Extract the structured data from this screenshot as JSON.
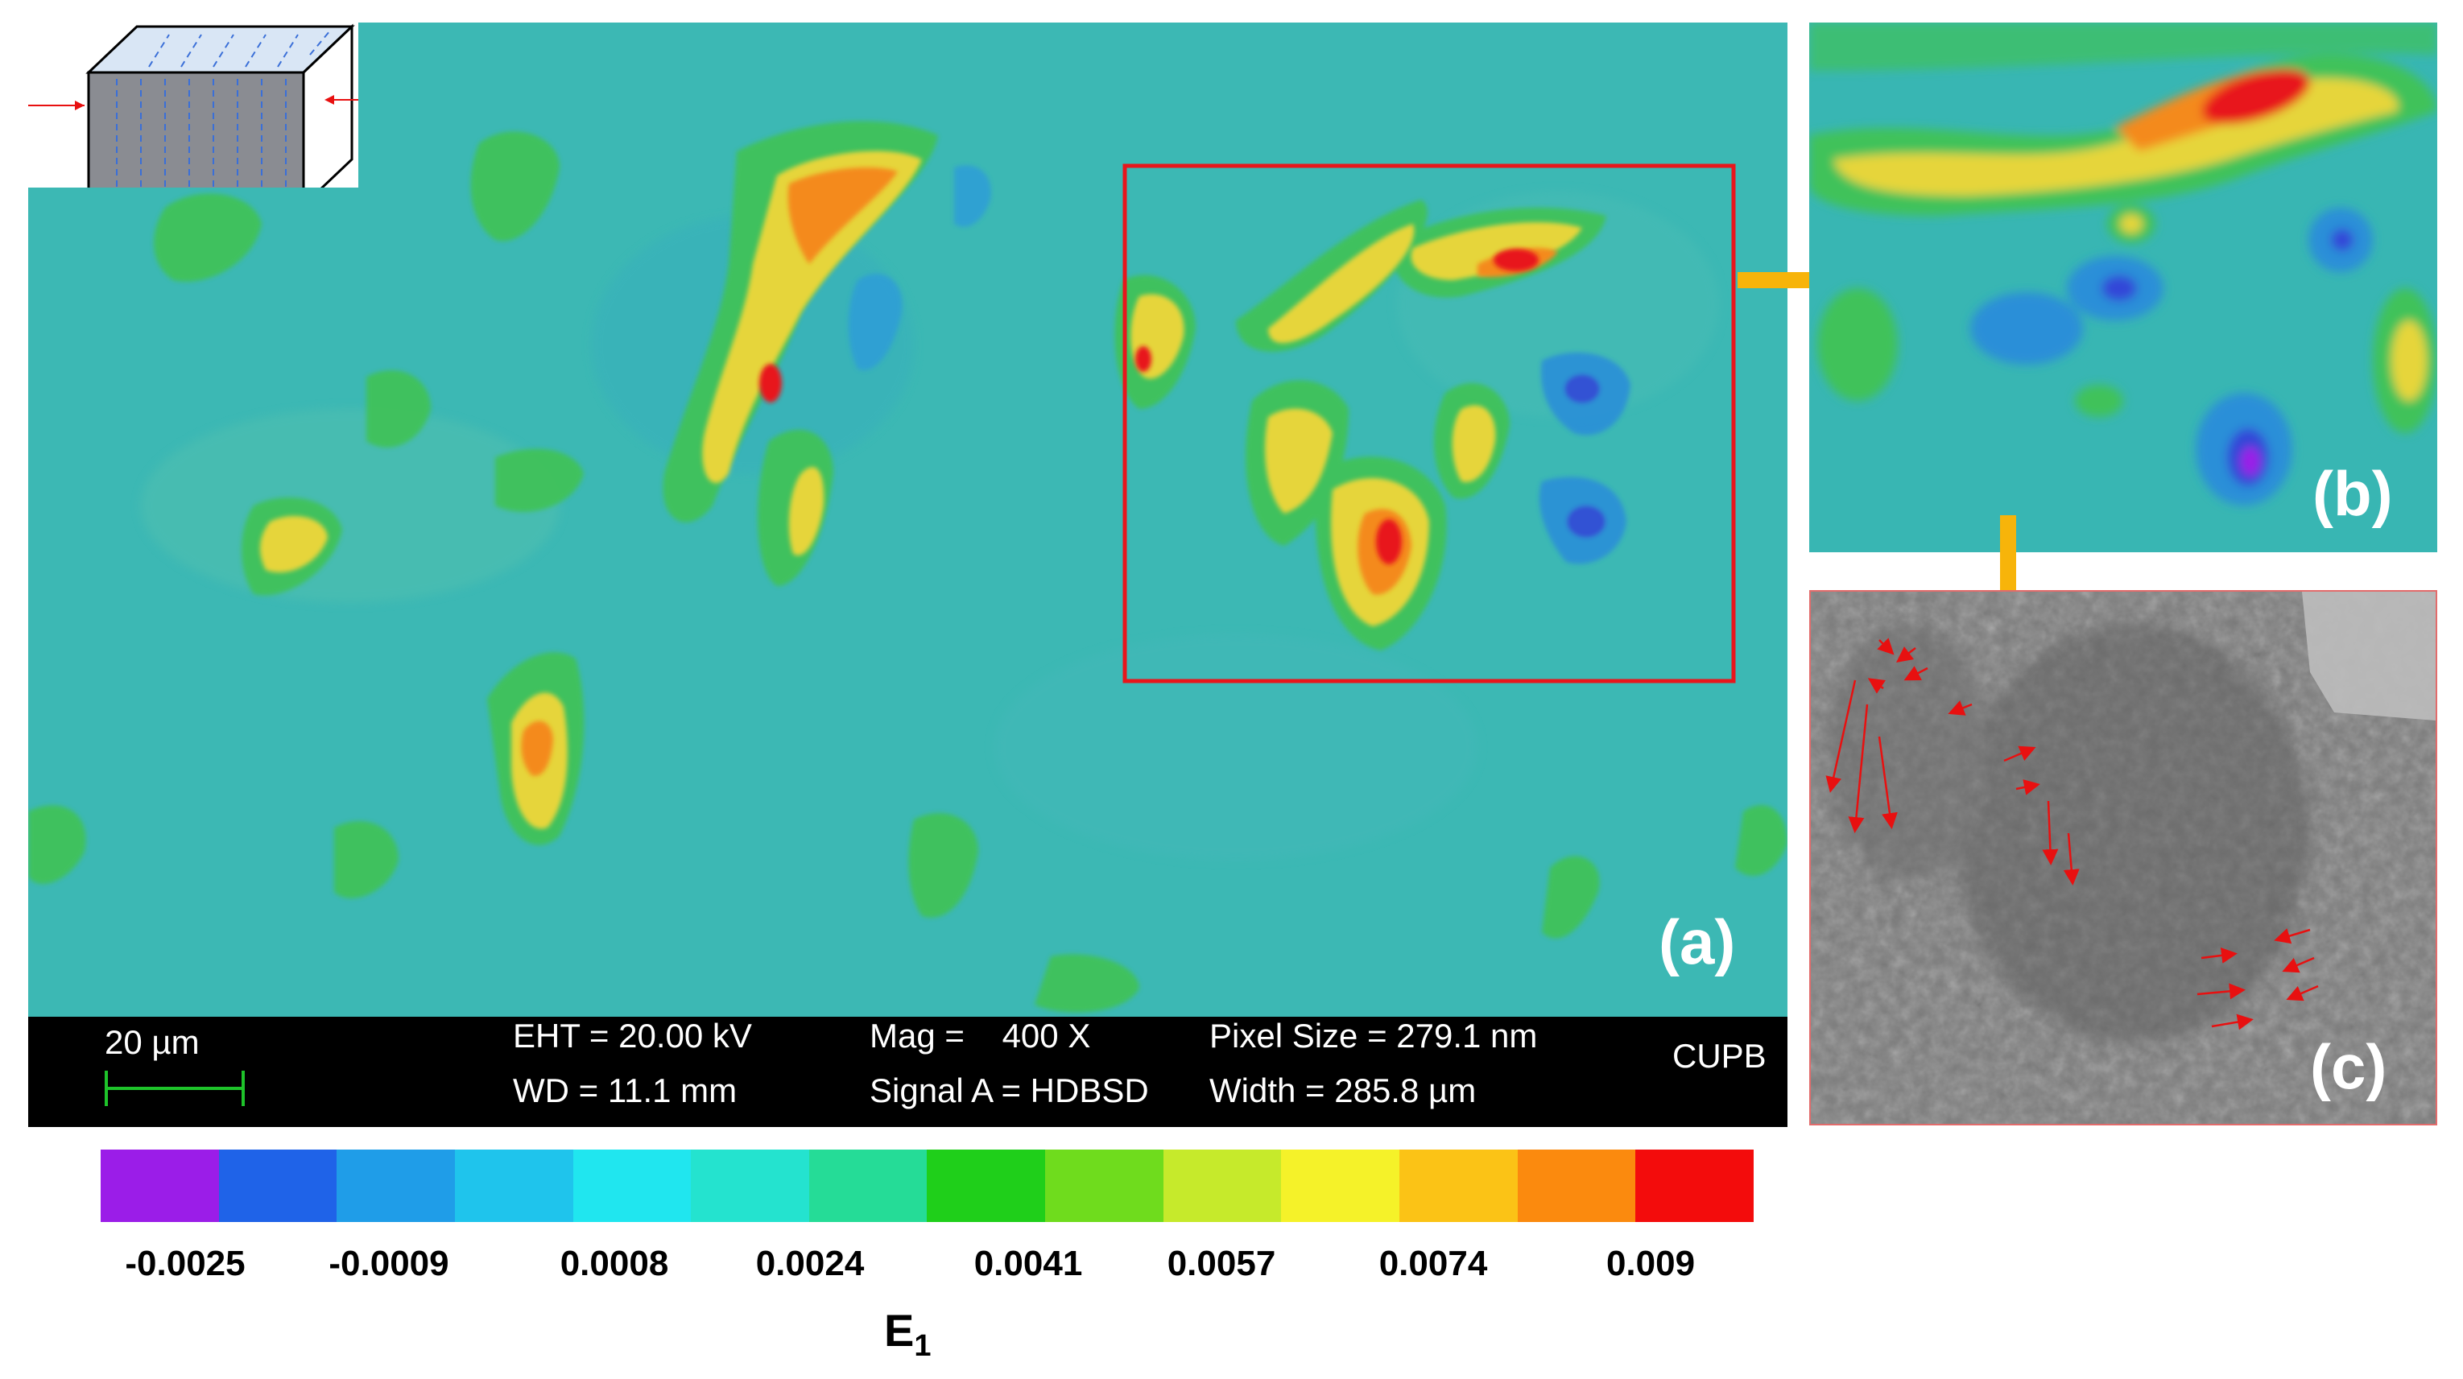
{
  "panel_labels": {
    "a": "(a)",
    "b": "(b)",
    "c": "(c)"
  },
  "sem_info": {
    "scale_bar": "20 µm",
    "eht": "EHT = 20.00 kV",
    "wd": "WD = 11.1 mm",
    "mag": "Mag =    400 X",
    "signal": "Signal A = HDBSD",
    "pixel_size": "Pixel Size = 279.1 nm",
    "width": "Width = 285.8 µm",
    "lab": "CUPB"
  },
  "colorbar": {
    "title_main": "E",
    "title_sub": "1",
    "ticks": [
      "-0.0025",
      "-0.0009",
      "0.0008",
      "0.0024",
      "0.0041",
      "0.0057",
      "0.0074",
      "0.009"
    ],
    "colors": [
      "#9b1de8",
      "#1f63e8",
      "#1f9de8",
      "#1fc4ec",
      "#20e6ef",
      "#24e3cf",
      "#25dc97",
      "#1fcf1a",
      "#6fdc1d",
      "#c6ea2b",
      "#f5f229",
      "#fbc316",
      "#fb8a0e",
      "#f30c0c"
    ]
  },
  "colors": {
    "highlight_box": "#e8161c",
    "arrow": "#f7b40a",
    "crack_arrow": "#e81010"
  }
}
